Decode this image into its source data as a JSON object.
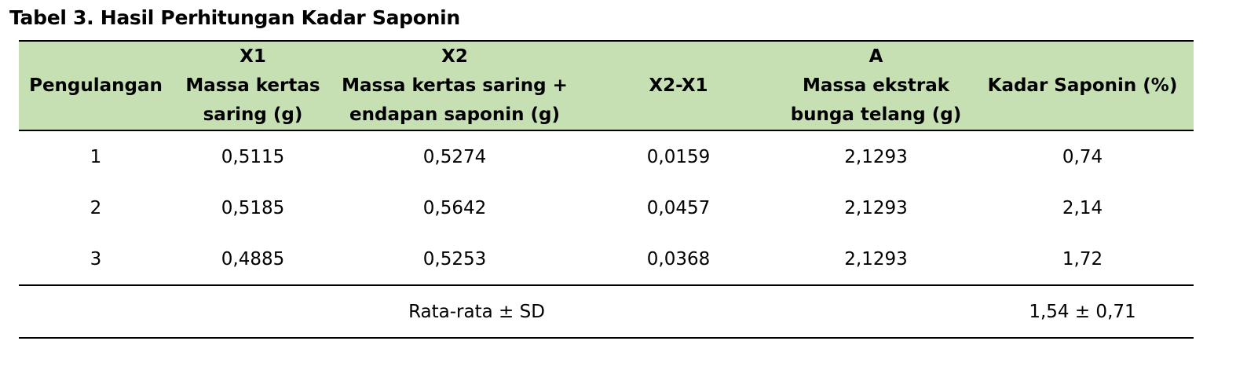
{
  "title": "Tabel 3. Hasil Perhitungan Kadar Saponin",
  "table": {
    "headers": [
      {
        "lines": [
          "Pengulangan"
        ]
      },
      {
        "lines": [
          "X1",
          "Massa kertas",
          "saring (g)"
        ]
      },
      {
        "lines": [
          "X2",
          "Massa kertas saring +",
          "endapan saponin (g)"
        ]
      },
      {
        "lines": [
          "X2-X1"
        ]
      },
      {
        "lines": [
          "A",
          "Massa ekstrak",
          "bunga telang (g)"
        ]
      },
      {
        "lines": [
          "Kadar Saponin (%)"
        ]
      }
    ],
    "rows": [
      [
        "1",
        "0,5115",
        "0,5274",
        "0,0159",
        "2,1293",
        "0,74"
      ],
      [
        "2",
        "0,5185",
        "0,5642",
        "0,0457",
        "2,1293",
        "2,14"
      ],
      [
        "3",
        "0,4885",
        "0,5253",
        "0,0368",
        "2,1293",
        "1,72"
      ]
    ],
    "summary": {
      "label": "Rata-rata ± SD",
      "value": "1,54 ± 0,71"
    }
  }
}
